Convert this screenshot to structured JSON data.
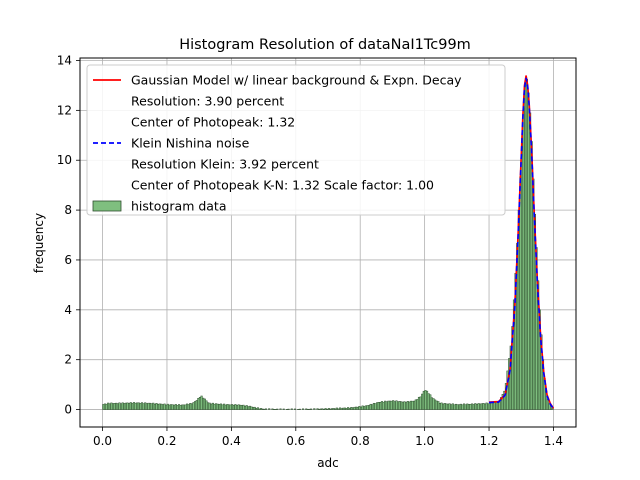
{
  "chart_data": {
    "type": "bar",
    "title": "Histogram Resolution of dataNaI1Tc99m",
    "xlabel": "adc",
    "ylabel": "frequency",
    "xlim": [
      -0.07,
      1.47
    ],
    "ylim": [
      -0.7,
      14.1
    ],
    "xticks": [
      0.0,
      0.2,
      0.4,
      0.6,
      0.8,
      1.0,
      1.2,
      1.4
    ],
    "yticks": [
      0,
      2,
      4,
      6,
      8,
      10,
      12,
      14
    ],
    "xtick_labels": [
      "0.0",
      "0.2",
      "0.4",
      "0.6",
      "0.8",
      "1.0",
      "1.2",
      "1.4"
    ],
    "ytick_labels": [
      "0",
      "2",
      "4",
      "6",
      "8",
      "10",
      "12",
      "14"
    ],
    "grid": true,
    "legend_position": "top-left",
    "legend": [
      {
        "kind": "line",
        "color": "#ff0000",
        "dash": false,
        "label": "Gaussian Model w/ linear background & Expn. Decay"
      },
      {
        "kind": "text",
        "label": "Resolution: 3.90 percent"
      },
      {
        "kind": "text",
        "label": "Center of Photopeak: 1.32"
      },
      {
        "kind": "line",
        "color": "#0000ff",
        "dash": true,
        "label": "Klein Nishina noise"
      },
      {
        "kind": "text",
        "label": "Resolution Klein: 3.92 percent"
      },
      {
        "kind": "text",
        "label": "Center of Photopeak K-N: 1.32 Scale factor: 1.00"
      },
      {
        "kind": "patch",
        "color": "#7fbf7f",
        "label": "histogram data"
      }
    ],
    "histogram": {
      "color": "#7fbf7f",
      "edge_color": "#2f4f2f",
      "bin_width": 0.005,
      "points": [
        [
          0.0,
          0.2
        ],
        [
          0.02,
          0.25
        ],
        [
          0.05,
          0.25
        ],
        [
          0.1,
          0.27
        ],
        [
          0.15,
          0.25
        ],
        [
          0.2,
          0.2
        ],
        [
          0.25,
          0.18
        ],
        [
          0.28,
          0.25
        ],
        [
          0.295,
          0.4
        ],
        [
          0.305,
          0.55
        ],
        [
          0.315,
          0.45
        ],
        [
          0.33,
          0.25
        ],
        [
          0.38,
          0.2
        ],
        [
          0.43,
          0.18
        ],
        [
          0.46,
          0.12
        ],
        [
          0.48,
          0.06
        ],
        [
          0.5,
          0.02
        ],
        [
          0.55,
          0.01
        ],
        [
          0.62,
          0.01
        ],
        [
          0.7,
          0.03
        ],
        [
          0.77,
          0.07
        ],
        [
          0.82,
          0.15
        ],
        [
          0.86,
          0.3
        ],
        [
          0.9,
          0.35
        ],
        [
          0.94,
          0.3
        ],
        [
          0.97,
          0.35
        ],
        [
          0.99,
          0.55
        ],
        [
          1.0,
          0.8
        ],
        [
          1.01,
          0.7
        ],
        [
          1.025,
          0.45
        ],
        [
          1.05,
          0.25
        ],
        [
          1.1,
          0.2
        ],
        [
          1.15,
          0.22
        ],
        [
          1.2,
          0.25
        ],
        [
          1.23,
          0.3
        ],
        [
          1.25,
          0.8
        ],
        [
          1.27,
          2.8
        ],
        [
          1.285,
          6.0
        ],
        [
          1.3,
          10.0
        ],
        [
          1.31,
          12.8
        ],
        [
          1.315,
          13.4
        ],
        [
          1.32,
          13.1
        ],
        [
          1.33,
          11.5
        ],
        [
          1.34,
          8.5
        ],
        [
          1.355,
          4.5
        ],
        [
          1.37,
          1.5
        ],
        [
          1.38,
          0.5
        ],
        [
          1.39,
          0.15
        ],
        [
          1.4,
          0.0
        ]
      ]
    },
    "series": [
      {
        "color": "#ff0000",
        "dash": false,
        "x": [
          1.2,
          1.23,
          1.25,
          1.265,
          1.28,
          1.29,
          1.3,
          1.305,
          1.31,
          1.315,
          1.32,
          1.325,
          1.33,
          1.335,
          1.34,
          1.35,
          1.36,
          1.37,
          1.38,
          1.39,
          1.4
        ],
        "y": [
          0.3,
          0.32,
          0.6,
          1.6,
          4.2,
          7.0,
          10.2,
          11.8,
          13.0,
          13.4,
          13.0,
          12.2,
          11.0,
          9.6,
          8.0,
          5.2,
          3.0,
          1.5,
          0.6,
          0.25,
          0.05
        ]
      },
      {
        "color": "#0000ff",
        "dash": true,
        "x": [
          1.2,
          1.23,
          1.25,
          1.265,
          1.28,
          1.29,
          1.3,
          1.305,
          1.31,
          1.315,
          1.32,
          1.325,
          1.33,
          1.335,
          1.34,
          1.35,
          1.36,
          1.37,
          1.38,
          1.39,
          1.4
        ],
        "y": [
          0.28,
          0.3,
          0.58,
          1.55,
          4.1,
          6.9,
          10.1,
          11.7,
          12.9,
          13.3,
          12.95,
          12.1,
          10.9,
          9.5,
          7.9,
          5.1,
          2.9,
          1.45,
          0.55,
          0.22,
          0.04
        ]
      }
    ]
  }
}
